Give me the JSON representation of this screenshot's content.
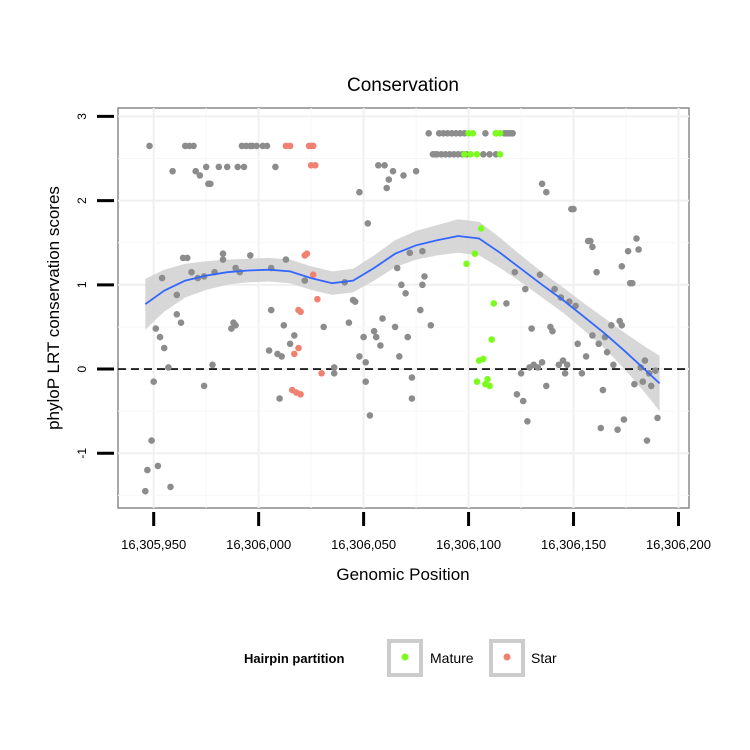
{
  "chart_data": {
    "type": "scatter",
    "title": "Conservation",
    "xlabel": "Genomic Position",
    "ylabel": "phyloP LRT conservation scores",
    "xlim": [
      16305933,
      16306205
    ],
    "ylim": [
      -1.65,
      3.1
    ],
    "x_ticks": [
      16305950,
      16306000,
      16306050,
      16306100,
      16306150,
      16306200
    ],
    "x_tick_labels": [
      "16,305,950",
      "16,306,000",
      "16,306,050",
      "16,306,100",
      "16,306,150",
      "16,306,200"
    ],
    "y_ticks": [
      -1,
      0,
      1,
      2,
      3
    ],
    "y_tick_labels": [
      "-1",
      "0",
      "1",
      "2",
      "3"
    ],
    "reference_line_y": 0,
    "legend": {
      "title": "Hairpin partition",
      "placement": "bottom",
      "entries": [
        {
          "label": "Mature",
          "color": "#7CFC1E"
        },
        {
          "label": "Star",
          "color": "#F08070"
        }
      ]
    },
    "colors": {
      "other": "#8C8C8C",
      "mature": "#7CFC1E",
      "star": "#F08070",
      "smooth": "#3366FF",
      "band": "#D0D0D0"
    },
    "series": [
      {
        "name": "Other",
        "points": [
          [
            16305946,
            -1.45
          ],
          [
            16305947,
            -1.2
          ],
          [
            16305949,
            -0.85
          ],
          [
            16305952,
            -1.15
          ],
          [
            16305958,
            -1.4
          ],
          [
            16305948,
            2.65
          ],
          [
            16305951,
            0.48
          ],
          [
            16305950,
            -0.15
          ],
          [
            16305954,
            1.08
          ],
          [
            16305955,
            0.25
          ],
          [
            16305953,
            0.38
          ],
          [
            16305957,
            0.02
          ],
          [
            16305959,
            2.35
          ],
          [
            16305961,
            0.65
          ],
          [
            16305961,
            0.88
          ],
          [
            16305963,
            0.55
          ],
          [
            16305964,
            1.32
          ],
          [
            16305966,
            1.32
          ],
          [
            16305965,
            2.65
          ],
          [
            16305967,
            2.65
          ],
          [
            16305969,
            2.65
          ],
          [
            16305968,
            1.15
          ],
          [
            16305970,
            2.35
          ],
          [
            16305971,
            1.08
          ],
          [
            16305972,
            2.3
          ],
          [
            16305974,
            1.1
          ],
          [
            16305974,
            -0.2
          ],
          [
            16305975,
            2.4
          ],
          [
            16305976,
            2.2
          ],
          [
            16305977,
            2.2
          ],
          [
            16305978,
            0.05
          ],
          [
            16305979,
            1.15
          ],
          [
            16305981,
            2.4
          ],
          [
            16305983,
            1.3
          ],
          [
            16305983,
            1.37
          ],
          [
            16305985,
            2.4
          ],
          [
            16305987,
            0.48
          ],
          [
            16305988,
            0.55
          ],
          [
            16305989,
            0.52
          ],
          [
            16305990,
            2.4
          ],
          [
            16305989,
            1.2
          ],
          [
            16305991,
            1.15
          ],
          [
            16305992,
            2.65
          ],
          [
            16305993,
            2.4
          ],
          [
            16305994,
            2.65
          ],
          [
            16305996,
            2.65
          ],
          [
            16305997,
            2.65
          ],
          [
            16305996,
            1.35
          ],
          [
            16305999,
            2.65
          ],
          [
            16306002,
            2.65
          ],
          [
            16306004,
            2.65
          ],
          [
            16306005,
            0.22
          ],
          [
            16306006,
            0.7
          ],
          [
            16306006,
            1.2
          ],
          [
            16306008,
            2.4
          ],
          [
            16306009,
            0.18
          ],
          [
            16306010,
            -0.35
          ],
          [
            16306011,
            0.15
          ],
          [
            16306012,
            0.52
          ],
          [
            16306013,
            1.3
          ],
          [
            16306015,
            0.3
          ],
          [
            16306017,
            0.4
          ],
          [
            16306022,
            1.05
          ],
          [
            16306031,
            0.5
          ],
          [
            16306036,
            -0.05
          ],
          [
            16306036,
            0.02
          ],
          [
            16306041,
            1.03
          ],
          [
            16306043,
            0.55
          ],
          [
            16306045,
            0.82
          ],
          [
            16306046,
            0.8
          ],
          [
            16306048,
            0.15
          ],
          [
            16306048,
            2.1
          ],
          [
            16306050,
            0.38
          ],
          [
            16306051,
            0.08
          ],
          [
            16306051,
            -0.15
          ],
          [
            16306052,
            1.73
          ],
          [
            16306053,
            -0.55
          ],
          [
            16306055,
            0.45
          ],
          [
            16306056,
            0.38
          ],
          [
            16306057,
            2.42
          ],
          [
            16306058,
            0.28
          ],
          [
            16306059,
            0.6
          ],
          [
            16306060,
            2.42
          ],
          [
            16306061,
            2.15
          ],
          [
            16306062,
            2.25
          ],
          [
            16306064,
            2.35
          ],
          [
            16306065,
            0.5
          ],
          [
            16306066,
            1.2
          ],
          [
            16306067,
            0.15
          ],
          [
            16306068,
            1.0
          ],
          [
            16306069,
            2.3
          ],
          [
            16306070,
            0.9
          ],
          [
            16306071,
            0.38
          ],
          [
            16306072,
            1.38
          ],
          [
            16306073,
            -0.35
          ],
          [
            16306073,
            -0.1
          ],
          [
            16306075,
            2.35
          ],
          [
            16306077,
            0.7
          ],
          [
            16306078,
            1.0
          ],
          [
            16306078,
            1.4
          ],
          [
            16306079,
            1.1
          ],
          [
            16306081,
            2.8
          ],
          [
            16306082,
            0.52
          ],
          [
            16306083,
            2.55
          ],
          [
            16306084,
            2.55
          ],
          [
            16306085,
            2.55
          ],
          [
            16306086,
            2.8
          ],
          [
            16306087,
            2.55
          ],
          [
            16306088,
            2.8
          ],
          [
            16306089,
            2.55
          ],
          [
            16306090,
            2.8
          ],
          [
            16306091,
            2.55
          ],
          [
            16306092,
            2.8
          ],
          [
            16306093,
            2.55
          ],
          [
            16306094,
            2.8
          ],
          [
            16306095,
            2.55
          ],
          [
            16306096,
            2.8
          ],
          [
            16306097,
            2.55
          ],
          [
            16306098,
            2.8
          ],
          [
            16306099,
            2.55
          ],
          [
            16306107,
            2.55
          ],
          [
            16306108,
            2.8
          ],
          [
            16306110,
            2.55
          ],
          [
            16306113,
            2.55
          ],
          [
            16306113,
            2.8
          ],
          [
            16306117,
            2.8
          ],
          [
            16306118,
            0.78
          ],
          [
            16306118,
            2.8
          ],
          [
            16306119,
            2.8
          ],
          [
            16306120,
            2.8
          ],
          [
            16306121,
            2.8
          ],
          [
            16306122,
            1.15
          ],
          [
            16306123,
            -0.3
          ],
          [
            16306125,
            -0.05
          ],
          [
            16306126,
            -0.38
          ],
          [
            16306127,
            0.95
          ],
          [
            16306128,
            -0.62
          ],
          [
            16306129,
            0.02
          ],
          [
            16306130,
            0.48
          ],
          [
            16306131,
            0.05
          ],
          [
            16306133,
            0.02
          ],
          [
            16306134,
            1.12
          ],
          [
            16306135,
            2.2
          ],
          [
            16306135,
            0.08
          ],
          [
            16306137,
            2.1
          ],
          [
            16306137,
            -0.2
          ],
          [
            16306139,
            0.5
          ],
          [
            16306140,
            0.45
          ],
          [
            16306141,
            0.95
          ],
          [
            16306143,
            0.05
          ],
          [
            16306144,
            0.85
          ],
          [
            16306145,
            0.1
          ],
          [
            16306146,
            -0.05
          ],
          [
            16306147,
            0.05
          ],
          [
            16306148,
            0.8
          ],
          [
            16306149,
            1.9
          ],
          [
            16306150,
            1.9
          ],
          [
            16306151,
            0.75
          ],
          [
            16306152,
            0.3
          ],
          [
            16306154,
            -0.05
          ],
          [
            16306156,
            0.15
          ],
          [
            16306157,
            1.52
          ],
          [
            16306158,
            1.52
          ],
          [
            16306159,
            0.4
          ],
          [
            16306159,
            1.45
          ],
          [
            16306161,
            1.15
          ],
          [
            16306162,
            0.3
          ],
          [
            16306163,
            -0.7
          ],
          [
            16306165,
            0.38
          ],
          [
            16306164,
            -0.25
          ],
          [
            16306166,
            0.2
          ],
          [
            16306168,
            0.52
          ],
          [
            16306169,
            0.05
          ],
          [
            16306171,
            -0.72
          ],
          [
            16306172,
            0.57
          ],
          [
            16306173,
            0.52
          ],
          [
            16306173,
            1.22
          ],
          [
            16306174,
            -0.6
          ],
          [
            16306176,
            1.4
          ],
          [
            16306177,
            1.02
          ],
          [
            16306178,
            1.02
          ],
          [
            16306179,
            -0.18
          ],
          [
            16306180,
            1.55
          ],
          [
            16306181,
            1.42
          ],
          [
            16306182,
            0.02
          ],
          [
            16306183,
            -0.15
          ],
          [
            16306184,
            0.1
          ],
          [
            16306185,
            -0.85
          ],
          [
            16306186,
            -0.05
          ],
          [
            16306187,
            -0.2
          ],
          [
            16306189,
            -0.02
          ],
          [
            16306190,
            -0.58
          ]
        ]
      },
      {
        "name": "Mature",
        "points": [
          [
            16306099,
            1.25
          ],
          [
            16306103,
            1.37
          ],
          [
            16306104,
            -0.15
          ],
          [
            16306105,
            0.1
          ],
          [
            16306106,
            1.67
          ],
          [
            16306107,
            0.12
          ],
          [
            16306108,
            -0.18
          ],
          [
            16306109,
            -0.12
          ],
          [
            16306110,
            -0.2
          ],
          [
            16306111,
            0.35
          ],
          [
            16306112,
            0.78
          ],
          [
            16306100,
            2.8
          ],
          [
            16306102,
            2.8
          ],
          [
            16306104,
            2.55
          ],
          [
            16306101,
            2.55
          ],
          [
            16306113,
            2.8
          ],
          [
            16306115,
            2.8
          ],
          [
            16306115,
            2.55
          ],
          [
            16306098,
            2.55
          ]
        ]
      },
      {
        "name": "Star",
        "points": [
          [
            16306013,
            2.65
          ],
          [
            16306015,
            2.65
          ],
          [
            16306024,
            2.65
          ],
          [
            16306025,
            2.65
          ],
          [
            16306026,
            2.65
          ],
          [
            16306025,
            2.42
          ],
          [
            16306027,
            2.42
          ],
          [
            16306019,
            0.7
          ],
          [
            16306020,
            0.68
          ],
          [
            16306022,
            1.35
          ],
          [
            16306023,
            1.37
          ],
          [
            16306026,
            1.12
          ],
          [
            16306028,
            0.83
          ],
          [
            16306017,
            0.18
          ],
          [
            16306019,
            0.25
          ],
          [
            16306016,
            -0.25
          ],
          [
            16306018,
            -0.28
          ],
          [
            16306020,
            -0.3
          ],
          [
            16306030,
            -0.05
          ]
        ]
      }
    ],
    "smooth": {
      "x": [
        16305946,
        16305955,
        16305965,
        16305975,
        16305985,
        16305995,
        16306005,
        16306015,
        16306025,
        16306035,
        16306045,
        16306055,
        16306065,
        16306075,
        16306085,
        16306095,
        16306105,
        16306115,
        16306125,
        16306135,
        16306145,
        16306155,
        16306165,
        16306175,
        16306185,
        16306191
      ],
      "y": [
        0.77,
        0.93,
        1.05,
        1.11,
        1.15,
        1.17,
        1.18,
        1.16,
        1.08,
        1.02,
        1.05,
        1.2,
        1.37,
        1.47,
        1.53,
        1.58,
        1.55,
        1.38,
        1.19,
        1.0,
        0.82,
        0.62,
        0.42,
        0.2,
        -0.03,
        -0.17
      ],
      "band_half_width": [
        0.3,
        0.25,
        0.2,
        0.17,
        0.15,
        0.14,
        0.14,
        0.14,
        0.14,
        0.14,
        0.14,
        0.15,
        0.16,
        0.17,
        0.18,
        0.2,
        0.2,
        0.18,
        0.16,
        0.15,
        0.15,
        0.16,
        0.18,
        0.22,
        0.28,
        0.33
      ]
    }
  }
}
